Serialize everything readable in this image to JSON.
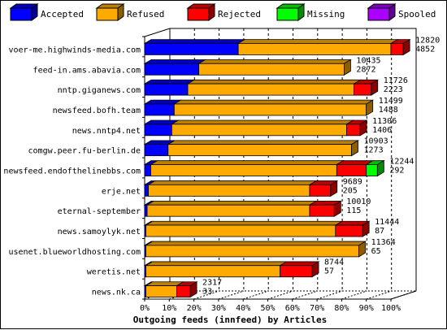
{
  "chart_data": {
    "type": "bar",
    "orientation": "horizontal",
    "stacked": true,
    "three_d": true,
    "title": "Outgoing feeds (innfeed) by Articles",
    "xlim": [
      0,
      100
    ],
    "x_ticks": [
      "0%",
      "10%",
      "20%",
      "30%",
      "40%",
      "50%",
      "60%",
      "70%",
      "80%",
      "90%",
      "100%"
    ],
    "legend_placement": "top",
    "series": [
      {
        "name": "Accepted",
        "color": "#0000ff"
      },
      {
        "name": "Refused",
        "color": "#ffaa00"
      },
      {
        "name": "Rejected",
        "color": "#ff0000"
      },
      {
        "name": "Missing",
        "color": "#00ff00"
      },
      {
        "name": "Spooled",
        "color": "#aa00ff"
      }
    ],
    "rows": [
      {
        "label": "voer-me.highwinds-media.com",
        "total": "12820",
        "accepted_count": "4852",
        "values": [
          38,
          62,
          5,
          0,
          0
        ]
      },
      {
        "label": "feed-in.ams.abavia.com",
        "total": "10435",
        "accepted_count": "2872",
        "values": [
          22,
          59,
          0,
          0,
          0
        ]
      },
      {
        "label": "nntp.giganews.com",
        "total": "11726",
        "accepted_count": "2223",
        "values": [
          17.5,
          67.5,
          7,
          0,
          0
        ]
      },
      {
        "label": "newsfeed.bofh.team",
        "total": "11499",
        "accepted_count": "1488",
        "values": [
          12,
          78,
          0,
          0,
          0
        ]
      },
      {
        "label": "news.nntp4.net",
        "total": "11306",
        "accepted_count": "1406",
        "values": [
          11,
          71,
          5.5,
          0,
          0
        ]
      },
      {
        "label": "comgw.peer.fu-berlin.de",
        "total": "10903",
        "accepted_count": "1273",
        "values": [
          9.5,
          74.5,
          0,
          0,
          0
        ]
      },
      {
        "label": "newsfeed.endofthelinebbs.com",
        "total": "12244",
        "accepted_count": "292",
        "values": [
          2.5,
          75.5,
          12,
          4.5,
          0
        ]
      },
      {
        "label": "erje.net",
        "total": "9689",
        "accepted_count": "205",
        "values": [
          1.5,
          65.5,
          8.5,
          0,
          0
        ]
      },
      {
        "label": "eternal-september",
        "total": "10010",
        "accepted_count": "115",
        "values": [
          1,
          66,
          10,
          0,
          0
        ]
      },
      {
        "label": "news.samoylyk.net",
        "total": "11444",
        "accepted_count": "87",
        "values": [
          0.5,
          77,
          11,
          0,
          0
        ]
      },
      {
        "label": "usenet.blueworldhosting.com",
        "total": "11364",
        "accepted_count": "65",
        "values": [
          0.5,
          86.5,
          0,
          0,
          0
        ]
      },
      {
        "label": "weretis.net",
        "total": "8744",
        "accepted_count": "57",
        "values": [
          0.5,
          54.5,
          13,
          0,
          0
        ]
      },
      {
        "label": "news.nk.ca",
        "total": "2317",
        "accepted_count": "33",
        "values": [
          0.5,
          12.5,
          5.5,
          0,
          0
        ]
      }
    ]
  }
}
